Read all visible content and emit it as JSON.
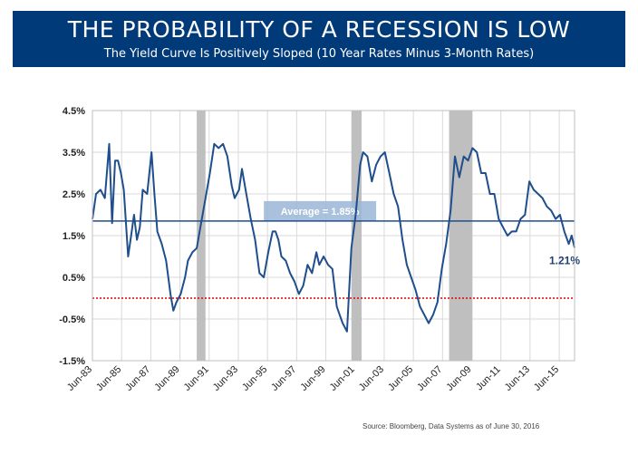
{
  "banner": {
    "title": "THE PROBABILITY OF A RECESSION IS LOW",
    "subtitle": "The Yield Curve Is Positively Sloped (10 Year Rates Minus 3-Month Rates)"
  },
  "source": "Source:  Bloomberg, Data Systems as of June 30, 2016",
  "colors": {
    "banner": "#003a78",
    "line": "#1f4e8c",
    "zero_line": "#e00000",
    "recession": "#bfbfbf",
    "average_box": "#9ab6d6"
  },
  "chart_data": {
    "type": "line",
    "title": "THE PROBABILITY OF A RECESSION IS LOW",
    "subtitle": "The Yield Curve Is Positively Sloped (10 Year Rates Minus 3-Month Rates)",
    "xlabel": "",
    "ylabel": "",
    "xlim": [
      1983.45,
      2016.5
    ],
    "ylim": [
      -1.5,
      4.5
    ],
    "yticks": [
      -1.5,
      -0.5,
      0.5,
      1.5,
      2.5,
      3.5,
      4.5
    ],
    "ytick_labels": [
      "-1.5%",
      "-0.5%",
      "0.5%",
      "1.5%",
      "2.5%",
      "3.5%",
      "4.5%"
    ],
    "xticks": [
      1983.45,
      1985.45,
      1987.45,
      1989.45,
      1991.45,
      1993.45,
      1995.45,
      1997.45,
      1999.45,
      2001.45,
      2003.45,
      2005.45,
      2007.45,
      2009.45,
      2011.45,
      2013.45,
      2015.45
    ],
    "xtick_labels": [
      "Jun-83",
      "Jun-85",
      "Jun-87",
      "Jun-89",
      "Jun-91",
      "Jun-93",
      "Jun-95",
      "Jun-97",
      "Jun-99",
      "Jun-01",
      "Jun-03",
      "Jun-05",
      "Jun-07",
      "Jun-09",
      "Jun-11",
      "Jun-13",
      "Jun-15"
    ],
    "grid": true,
    "recessions": [
      [
        1990.6,
        1991.2
      ],
      [
        2001.2,
        2001.9
      ],
      [
        2007.9,
        2009.5
      ]
    ],
    "average": {
      "value": 1.85,
      "label": "Average = 1.85%",
      "label_from": 1995.2,
      "label_to": 2002.9
    },
    "reference_line": {
      "value": 0,
      "style": "dotted"
    },
    "end_label": "1.21%",
    "series": [
      {
        "name": "10 Year Rates Minus 3-Month Rates",
        "x": [
          1983.45,
          1983.7,
          1984.0,
          1984.3,
          1984.6,
          1984.8,
          1985.0,
          1985.2,
          1985.4,
          1985.6,
          1985.9,
          1986.1,
          1986.3,
          1986.5,
          1986.7,
          1986.9,
          1987.2,
          1987.5,
          1987.7,
          1987.9,
          1988.2,
          1988.5,
          1988.8,
          1989.0,
          1989.2,
          1989.5,
          1989.8,
          1990.0,
          1990.3,
          1990.6,
          1990.9,
          1991.2,
          1991.5,
          1991.8,
          1992.1,
          1992.4,
          1992.7,
          1993.0,
          1993.2,
          1993.5,
          1993.7,
          1994.0,
          1994.3,
          1994.6,
          1994.9,
          1995.2,
          1995.5,
          1995.8,
          1996.0,
          1996.2,
          1996.4,
          1996.7,
          1997.0,
          1997.3,
          1997.6,
          1997.9,
          1998.2,
          1998.5,
          1998.8,
          1999.0,
          1999.3,
          1999.6,
          1999.9,
          2000.2,
          2000.4,
          2000.6,
          2000.9,
          2001.2,
          2001.5,
          2001.8,
          2002.0,
          2002.3,
          2002.6,
          2002.9,
          2003.2,
          2003.5,
          2003.8,
          2004.1,
          2004.4,
          2004.7,
          2005.0,
          2005.3,
          2005.6,
          2005.9,
          2006.2,
          2006.5,
          2006.8,
          2007.1,
          2007.4,
          2007.7,
          2008.0,
          2008.3,
          2008.6,
          2008.9,
          2009.2,
          2009.5,
          2009.8,
          2010.1,
          2010.4,
          2010.7,
          2011.0,
          2011.3,
          2011.6,
          2011.9,
          2012.2,
          2012.5,
          2012.8,
          2013.1,
          2013.4,
          2013.7,
          2014.0,
          2014.3,
          2014.6,
          2014.9,
          2015.2,
          2015.5,
          2015.8,
          2016.1,
          2016.3,
          2016.5
        ],
        "values": [
          1.9,
          2.5,
          2.6,
          2.4,
          3.7,
          1.8,
          3.3,
          3.3,
          3.0,
          2.6,
          1.0,
          1.5,
          2.0,
          1.4,
          1.7,
          2.6,
          2.5,
          3.5,
          2.5,
          1.6,
          1.3,
          0.9,
          0.1,
          -0.3,
          -0.1,
          0.1,
          0.5,
          0.9,
          1.1,
          1.2,
          1.8,
          2.4,
          3.0,
          3.7,
          3.6,
          3.7,
          3.4,
          2.7,
          2.4,
          2.6,
          3.1,
          2.5,
          1.9,
          1.4,
          0.6,
          0.5,
          1.1,
          1.6,
          1.6,
          1.4,
          1.0,
          0.9,
          0.6,
          0.4,
          0.1,
          0.3,
          0.8,
          0.6,
          1.1,
          0.8,
          1.0,
          0.8,
          0.7,
          -0.2,
          -0.4,
          -0.6,
          -0.8,
          1.2,
          2.0,
          3.2,
          3.5,
          3.4,
          2.8,
          3.2,
          3.4,
          3.5,
          3.0,
          2.5,
          2.2,
          1.4,
          0.8,
          0.5,
          0.2,
          -0.2,
          -0.4,
          -0.6,
          -0.4,
          -0.1,
          0.7,
          1.3,
          2.1,
          3.4,
          2.9,
          3.4,
          3.3,
          3.6,
          3.5,
          3.0,
          3.0,
          2.5,
          2.5,
          1.9,
          1.7,
          1.5,
          1.6,
          1.6,
          1.9,
          2.0,
          2.8,
          2.6,
          2.5,
          2.4,
          2.2,
          2.1,
          1.9,
          2.0,
          1.6,
          1.3,
          1.5,
          1.21
        ]
      }
    ]
  }
}
